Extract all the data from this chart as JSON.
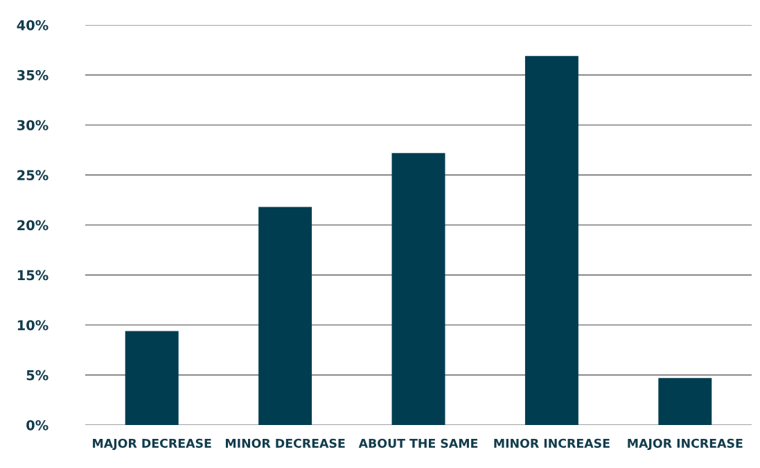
{
  "chart_data": {
    "type": "bar",
    "categories": [
      "MAJOR DECREASE",
      "MINOR DECREASE",
      "ABOUT THE SAME",
      "MINOR INCREASE",
      "MAJOR INCREASE"
    ],
    "values": [
      9.4,
      21.8,
      27.2,
      36.9,
      4.7
    ],
    "color": "#003d50",
    "ylim": [
      0,
      40
    ],
    "yticks": [
      {
        "value": 0,
        "label": "0%"
      },
      {
        "value": 5,
        "label": "5%"
      },
      {
        "value": 10,
        "label": "10%"
      },
      {
        "value": 15,
        "label": "15%"
      },
      {
        "value": 20,
        "label": "20%"
      },
      {
        "value": 25,
        "label": "25%"
      },
      {
        "value": 30,
        "label": "30%"
      },
      {
        "value": 35,
        "label": "35%"
      },
      {
        "value": 40,
        "label": "40%"
      }
    ],
    "grid": "y"
  }
}
